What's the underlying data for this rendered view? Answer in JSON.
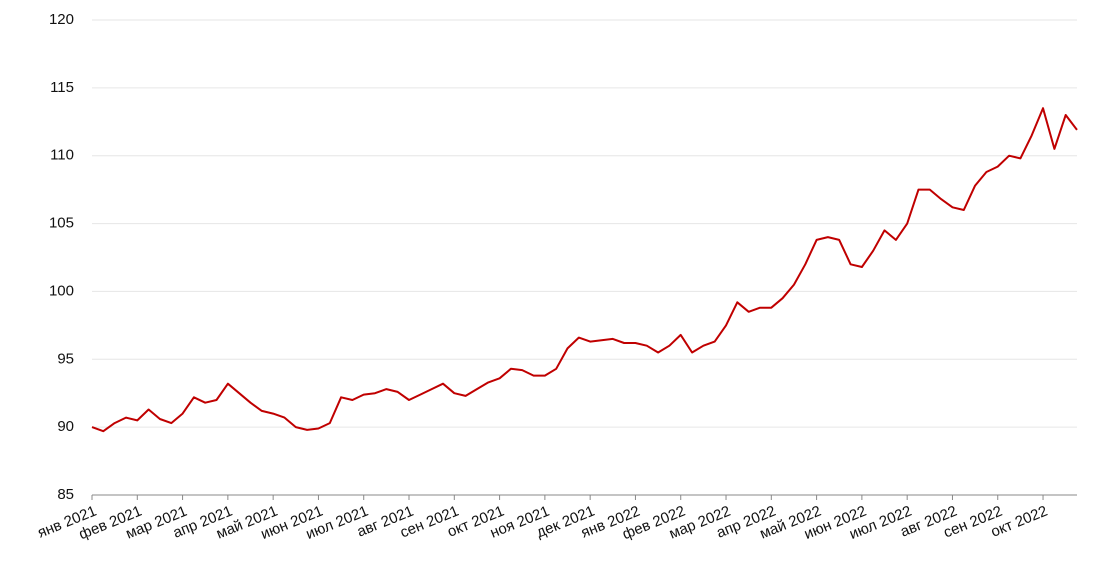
{
  "chart_data": {
    "type": "line",
    "categories": [
      "янв 2021",
      null,
      null,
      null,
      "фев 2021",
      null,
      null,
      null,
      "мар 2021",
      null,
      null,
      null,
      "апр 2021",
      null,
      null,
      null,
      "май 2021",
      null,
      null,
      null,
      "июн 2021",
      null,
      null,
      null,
      "июл 2021",
      null,
      null,
      null,
      "авг 2021",
      null,
      null,
      null,
      "сен 2021",
      null,
      null,
      null,
      "окт 2021",
      null,
      null,
      null,
      "ноя 2021",
      null,
      null,
      null,
      "дек 2021",
      null,
      null,
      null,
      "янв 2022",
      null,
      null,
      null,
      "фев 2022",
      null,
      null,
      null,
      "мар 2022",
      null,
      null,
      null,
      "апр 2022",
      null,
      null,
      null,
      "май 2022",
      null,
      null,
      null,
      "июн 2022",
      null,
      null,
      null,
      "июл 2022",
      null,
      null,
      null,
      "авг 2022",
      null,
      null,
      null,
      "сен 2022",
      null,
      null,
      null,
      "окт 2022",
      null,
      null,
      null
    ],
    "series": [
      {
        "color": "#c00000",
        "values": [
          90,
          89.7,
          90.3,
          90.7,
          90.5,
          91.3,
          90.6,
          90.3,
          91,
          92.2,
          91.8,
          92,
          93.2,
          92.5,
          91.8,
          91.2,
          91,
          90.7,
          90,
          89.8,
          89.9,
          90.3,
          92.2,
          92,
          92.4,
          92.5,
          92.8,
          92.6,
          92,
          92.4,
          92.8,
          93.2,
          92.5,
          92.3,
          92.8,
          93.3,
          93.6,
          94.3,
          94.2,
          93.8,
          93.8,
          94.3,
          95.8,
          96.6,
          96.3,
          96.4,
          96.5,
          96.2,
          96.2,
          96,
          95.5,
          96,
          96.8,
          95.5,
          96,
          96.3,
          97.5,
          99.2,
          98.5,
          98.8,
          98.8,
          99.5,
          100.5,
          102,
          103.8,
          104,
          103.8,
          102,
          101.8,
          103,
          104.5,
          103.8,
          105,
          107.5,
          107.5,
          106.8,
          106.2,
          106,
          107.8,
          108.8,
          109.2,
          110,
          109.8,
          111.5,
          113.5,
          110.5,
          113,
          111.9
        ]
      }
    ],
    "ylim": [
      85,
      120
    ],
    "yticks": [
      85,
      90,
      95,
      100,
      105,
      110,
      115,
      120
    ],
    "grid": true
  }
}
